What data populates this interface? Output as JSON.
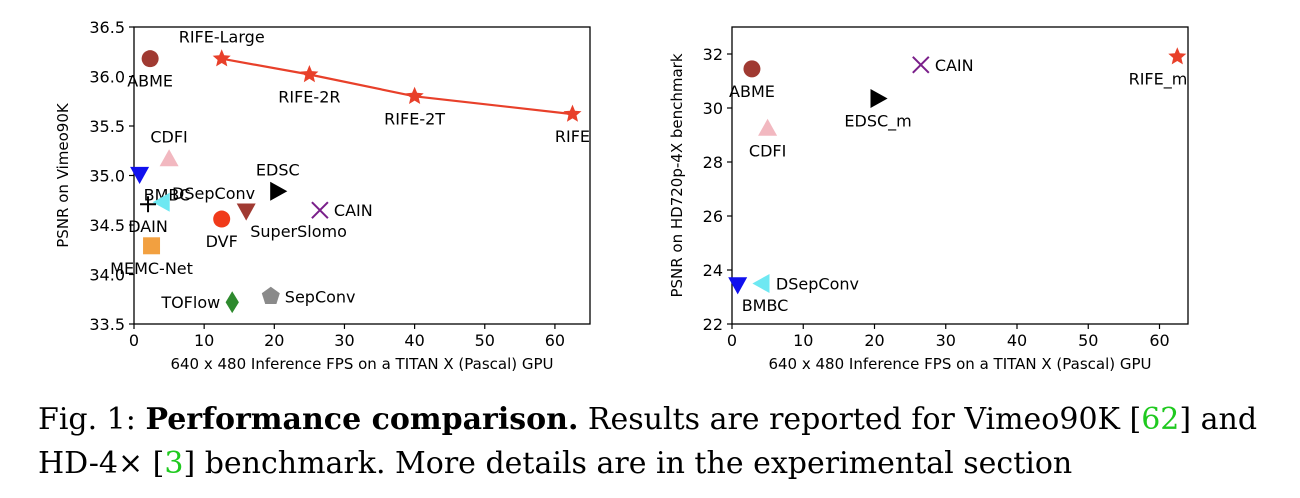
{
  "caption": {
    "fig_label": "Fig. 1:",
    "bold": "Performance comparison.",
    "t1": " Results are reported for Vimeo90K [",
    "ref1": "62",
    "t2": "] and HD-4× [",
    "ref2": "3",
    "t3": "] benchmark. More details are in the experimental section"
  },
  "colors": {
    "rife": "#e8402a",
    "abme": "#a03a32",
    "cdfi": "#f2b8c0",
    "bmbc": "#1010ee",
    "dsepconv": "#6ee8f2",
    "dain": "#000000",
    "dvf": "#f03a1a",
    "superslomo": "#a03a32",
    "edsc": "#000000",
    "cain": "#7a1f8a",
    "memcnet": "#f2a040",
    "toflow": "#2e8a2e",
    "sepconv": "#8a8a8a"
  },
  "chart_data": [
    {
      "type": "scatter",
      "title": "",
      "xlabel": "640 x 480 Inference FPS on a TITAN X (Pascal) GPU",
      "ylabel": "PSNR on Vimeo90K",
      "xlim": [
        0,
        65
      ],
      "ylim": [
        33.5,
        36.5
      ],
      "xticks": [
        "0",
        "10",
        "20",
        "30",
        "40",
        "50",
        "60"
      ],
      "yticks": [
        "33.5",
        "34.0",
        "34.5",
        "35.0",
        "35.5",
        "36.0",
        "36.5"
      ],
      "grid": false,
      "line_series": [
        {
          "color": "rife",
          "x": [
            12.5,
            25,
            40,
            62.5
          ],
          "y": [
            36.18,
            36.02,
            35.8,
            35.62
          ]
        }
      ],
      "points": [
        {
          "label": "RIFE-Large",
          "x": 12.5,
          "y": 36.18,
          "marker": "star",
          "color": "rife",
          "lpos": "above"
        },
        {
          "label": "RIFE-2R",
          "x": 25,
          "y": 36.02,
          "marker": "star",
          "color": "rife",
          "lpos": "below"
        },
        {
          "label": "RIFE-2T",
          "x": 40,
          "y": 35.8,
          "marker": "star",
          "color": "rife",
          "lpos": "below"
        },
        {
          "label": "RIFE",
          "x": 62.5,
          "y": 35.62,
          "marker": "star",
          "color": "rife",
          "lpos": "below"
        },
        {
          "label": "ABME",
          "x": 2.3,
          "y": 36.18,
          "marker": "circle",
          "color": "abme",
          "lpos": "below"
        },
        {
          "label": "CDFI",
          "x": 5,
          "y": 35.17,
          "marker": "triangle-up",
          "color": "cdfi",
          "lpos": "above"
        },
        {
          "label": "BMBC",
          "x": 0.8,
          "y": 35.01,
          "marker": "triangle-down",
          "color": "bmbc",
          "lpos": "below-right"
        },
        {
          "label": "DSepConv",
          "x": 4,
          "y": 34.73,
          "marker": "triangle-left",
          "color": "dsepconv",
          "lpos": "right-up"
        },
        {
          "label": "DAIN",
          "x": 2,
          "y": 34.71,
          "marker": "plus",
          "color": "dain",
          "lpos": "below"
        },
        {
          "label": "EDSC",
          "x": 20.5,
          "y": 34.84,
          "marker": "triangle-right",
          "color": "edsc",
          "lpos": "above"
        },
        {
          "label": "CAIN",
          "x": 26.5,
          "y": 34.65,
          "marker": "x",
          "color": "cain",
          "lpos": "right"
        },
        {
          "label": "DVF",
          "x": 12.5,
          "y": 34.56,
          "marker": "circle",
          "color": "dvf",
          "lpos": "below"
        },
        {
          "label": "SuperSlomo",
          "x": 16,
          "y": 34.64,
          "marker": "triangle-down",
          "color": "superslomo",
          "lpos": "below-right"
        },
        {
          "label": "MEMC-Net",
          "x": 2.5,
          "y": 34.29,
          "marker": "square",
          "color": "memcnet",
          "lpos": "below"
        },
        {
          "label": "TOFlow",
          "x": 14,
          "y": 33.72,
          "marker": "diamond",
          "color": "toflow",
          "lpos": "left"
        },
        {
          "label": "SepConv",
          "x": 19.5,
          "y": 33.78,
          "marker": "pentagon",
          "color": "sepconv",
          "lpos": "right"
        }
      ]
    },
    {
      "type": "scatter",
      "title": "",
      "xlabel": "640 x 480 Inference FPS on a TITAN X (Pascal) GPU",
      "ylabel": "PSNR on HD720p-4X benchmark",
      "xlim": [
        0,
        64
      ],
      "ylim": [
        22,
        33
      ],
      "xticks": [
        "0",
        "10",
        "20",
        "30",
        "40",
        "50",
        "60"
      ],
      "yticks": [
        "22",
        "24",
        "26",
        "28",
        "30",
        "32"
      ],
      "grid": false,
      "line_series": [],
      "points": [
        {
          "label": "ABME",
          "x": 2.8,
          "y": 31.45,
          "marker": "circle",
          "color": "abme",
          "lpos": "below"
        },
        {
          "label": "CAIN",
          "x": 26.5,
          "y": 31.6,
          "marker": "x",
          "color": "cain",
          "lpos": "right"
        },
        {
          "label": "RIFE_m",
          "x": 62.5,
          "y": 31.9,
          "marker": "star",
          "color": "rife",
          "lpos": "below-left"
        },
        {
          "label": "EDSC_m",
          "x": 20.5,
          "y": 30.35,
          "marker": "triangle-right",
          "color": "edsc",
          "lpos": "below"
        },
        {
          "label": "CDFI",
          "x": 5,
          "y": 29.25,
          "marker": "triangle-up",
          "color": "cdfi",
          "lpos": "below"
        },
        {
          "label": "BMBC",
          "x": 0.8,
          "y": 23.45,
          "marker": "triangle-down",
          "color": "bmbc",
          "lpos": "below-right"
        },
        {
          "label": "DSepConv",
          "x": 4.2,
          "y": 23.5,
          "marker": "triangle-left",
          "color": "dsepconv",
          "lpos": "right"
        }
      ]
    }
  ]
}
